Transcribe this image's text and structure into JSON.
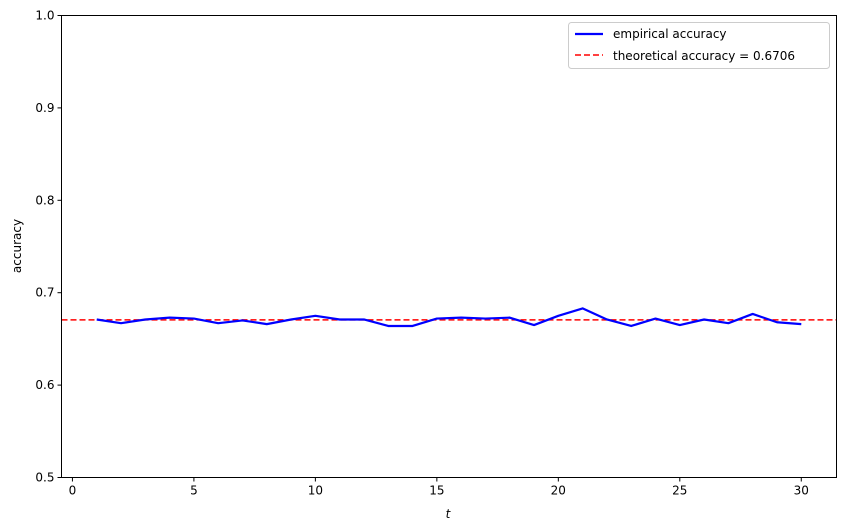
{
  "chart_data": {
    "type": "line",
    "xlabel": "t",
    "ylabel": "accuracy",
    "xlim": [
      -0.45,
      31.45
    ],
    "ylim": [
      0.5,
      1.0
    ],
    "xticks": [
      0,
      5,
      10,
      15,
      20,
      25,
      30
    ],
    "yticks": [
      0.5,
      0.6,
      0.7,
      0.8,
      0.9,
      1.0
    ],
    "ytick_labels": [
      "0.5",
      "0.6",
      "0.7",
      "0.8",
      "0.9",
      "1.0"
    ],
    "grid": false,
    "legend_position": "top-right",
    "x": [
      1,
      2,
      3,
      4,
      5,
      6,
      7,
      8,
      9,
      10,
      11,
      12,
      13,
      14,
      15,
      16,
      17,
      18,
      19,
      20,
      21,
      22,
      23,
      24,
      25,
      26,
      27,
      28,
      29,
      30
    ],
    "series": [
      {
        "name": "empirical accuracy",
        "color": "#0000ff",
        "style": "solid",
        "values": [
          0.671,
          0.667,
          0.671,
          0.673,
          0.672,
          0.667,
          0.67,
          0.666,
          0.671,
          0.675,
          0.671,
          0.671,
          0.664,
          0.664,
          0.672,
          0.673,
          0.672,
          0.673,
          0.665,
          0.675,
          0.683,
          0.671,
          0.664,
          0.672,
          0.665,
          0.671,
          0.667,
          0.677,
          0.668,
          0.666
        ]
      },
      {
        "name": "theoretical accuracy = 0.6706",
        "color": "#ff0000",
        "style": "dashed",
        "hline": 0.6706
      }
    ]
  }
}
